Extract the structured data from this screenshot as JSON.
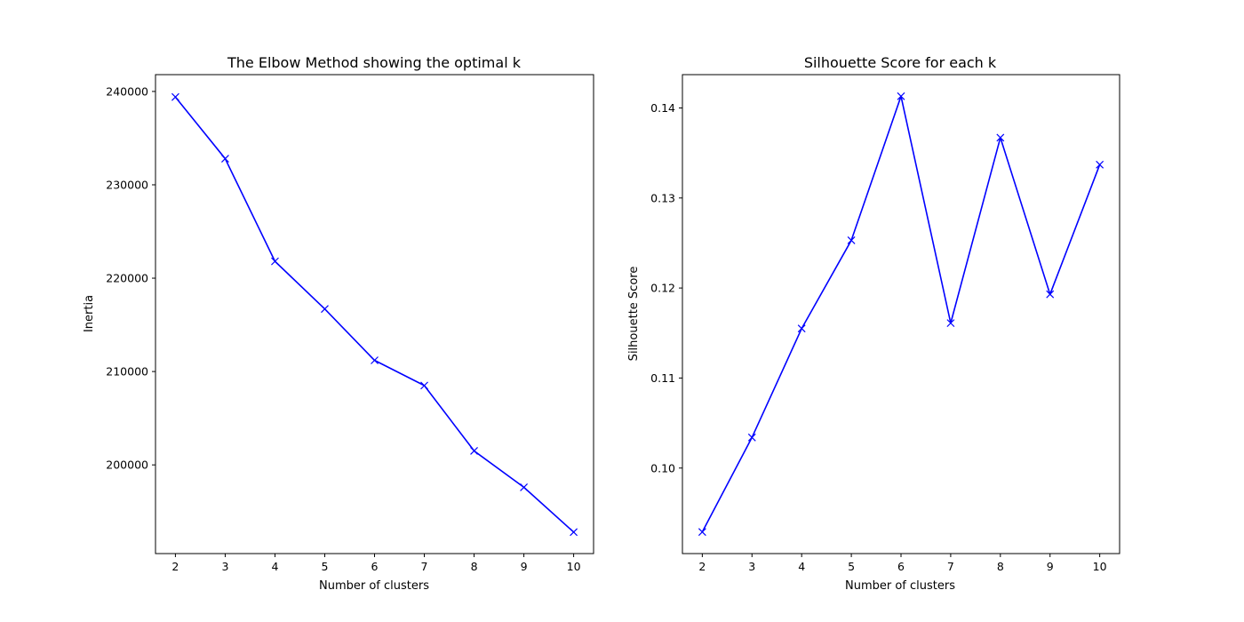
{
  "chart_data": [
    {
      "type": "line",
      "title": "The Elbow Method showing the optimal k",
      "xlabel": "Number of clusters",
      "ylabel": "Inertia",
      "x": [
        2,
        3,
        4,
        5,
        6,
        7,
        8,
        9,
        10
      ],
      "y": [
        239400,
        232800,
        221800,
        216700,
        211200,
        208500,
        201500,
        197600,
        192800
      ],
      "xlim": [
        1.6,
        10.4
      ],
      "ylim": [
        190500,
        241800
      ],
      "xticks": [
        2,
        3,
        4,
        5,
        6,
        7,
        8,
        9,
        10
      ],
      "yticks": [
        200000,
        210000,
        220000,
        230000,
        240000
      ],
      "line_color": "#0000ff",
      "marker": "x",
      "grid": false
    },
    {
      "type": "line",
      "title": "Silhouette Score for each k",
      "xlabel": "Number of clusters",
      "ylabel": "Silhouette Score",
      "x": [
        2,
        3,
        4,
        5,
        6,
        7,
        8,
        9,
        10
      ],
      "y": [
        0.0929,
        0.1034,
        0.1155,
        0.1253,
        0.1413,
        0.1161,
        0.1367,
        0.1193,
        0.1337
      ],
      "xlim": [
        1.6,
        10.4
      ],
      "ylim": [
        0.0905,
        0.1437
      ],
      "xticks": [
        2,
        3,
        4,
        5,
        6,
        7,
        8,
        9,
        10
      ],
      "yticks": [
        0.1,
        0.11,
        0.12,
        0.13,
        0.14
      ],
      "ytick_labels": [
        "0.10",
        "0.11",
        "0.12",
        "0.13",
        "0.14"
      ],
      "line_color": "#0000ff",
      "marker": "x",
      "grid": false
    }
  ]
}
